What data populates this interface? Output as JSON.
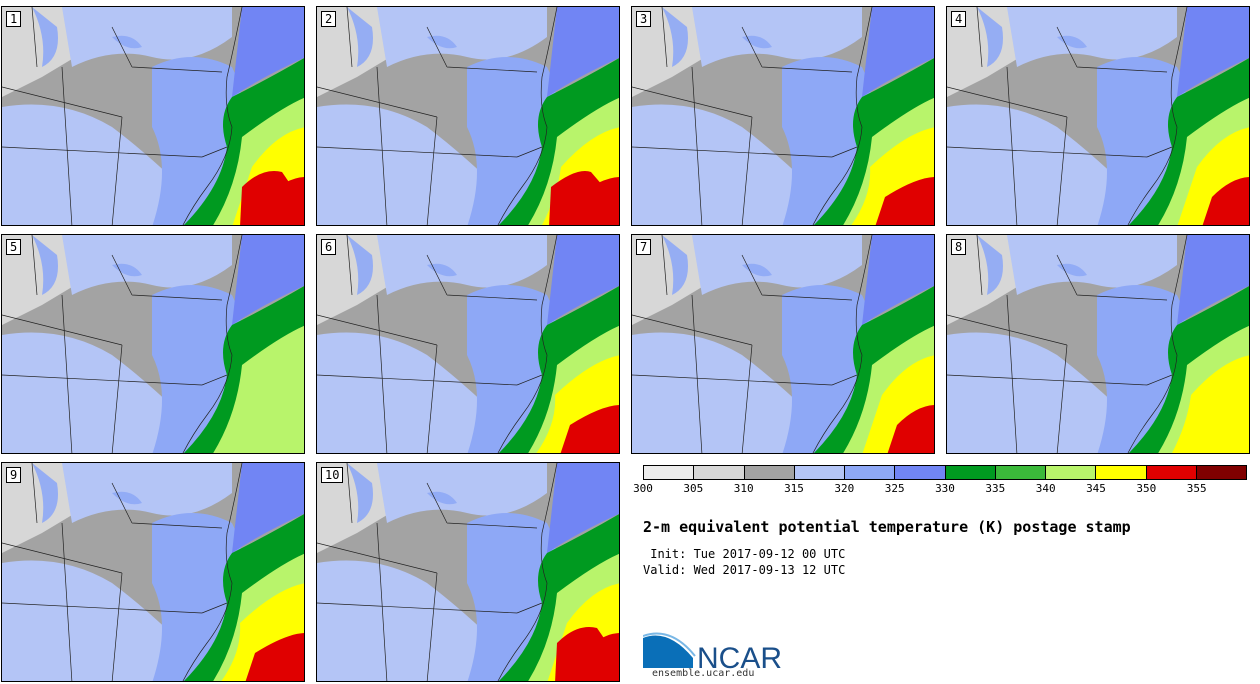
{
  "panels": [
    {
      "number": "1",
      "warm": 5
    },
    {
      "number": "2",
      "warm": 5
    },
    {
      "number": "3",
      "warm": 3
    },
    {
      "number": "4",
      "warm": 3
    },
    {
      "number": "5",
      "warm": 1
    },
    {
      "number": "6",
      "warm": 3
    },
    {
      "number": "7",
      "warm": 3
    },
    {
      "number": "8",
      "warm": 2
    },
    {
      "number": "9",
      "warm": 4
    },
    {
      "number": "10",
      "warm": 5
    }
  ],
  "colorbar": {
    "colors": [
      "#ececec",
      "#d7d7d7",
      "#a3a3a3",
      "#b4c5f6",
      "#8ea8f6",
      "#7185f4",
      "#009a20",
      "#3bb93a",
      "#b8f46b",
      "#ffff00",
      "#e00000",
      "#800000"
    ],
    "labels": [
      "300",
      "305",
      "310",
      "315",
      "320",
      "325",
      "330",
      "335",
      "340",
      "345",
      "350",
      "355"
    ]
  },
  "title": "2-m equivalent potential temperature (K) postage stamp",
  "init_text": " Init: Tue 2017-09-12 00 UTC",
  "valid_text": "Valid: Wed 2017-09-13 12 UTC",
  "logo": {
    "text": "NCAR",
    "url": "ensemble.ucar.edu"
  }
}
